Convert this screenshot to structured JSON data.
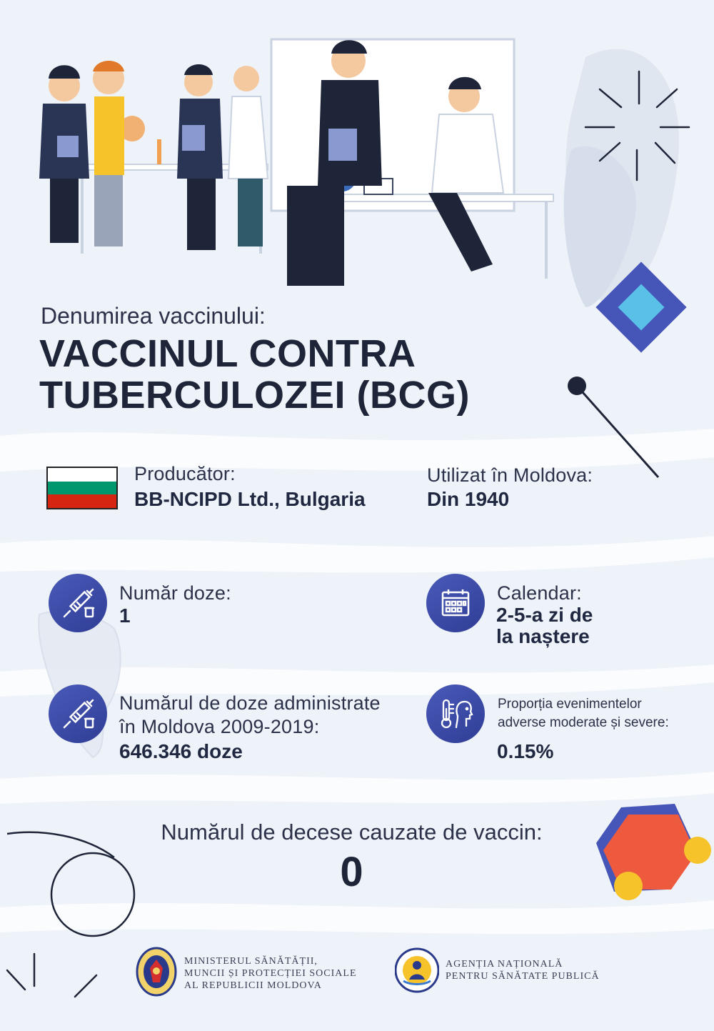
{
  "vaccine": {
    "label": "Denumirea vaccinului:",
    "name_line1": "VACCINUL CONTRA",
    "name_line2": "TUBERCULOZEI (BCG)"
  },
  "producer": {
    "label": "Producător:",
    "value": "BB-NCIPD Ltd., Bulgaria",
    "flag_colors": [
      "#ffffff",
      "#00966e",
      "#d62612"
    ]
  },
  "used_in_moldova": {
    "label": "Utilizat în Moldova:",
    "value": "Din 1940"
  },
  "doses": {
    "label": "Număr doze:",
    "value": "1",
    "icon": "syringe-icon"
  },
  "calendar": {
    "label": "Calendar:",
    "value_line1": "2-5-a zi de",
    "value_line2": "la naștere",
    "icon": "calendar-icon"
  },
  "administered": {
    "label_line1": "Numărul de doze administrate",
    "label_line2": "în Moldova 2009-2019:",
    "value": "646.346 doze",
    "icon": "syringe-icon"
  },
  "adverse_events": {
    "label_line1": "Proporția evenimentelor",
    "label_line2": "adverse moderate și severe:",
    "value": "0.15%",
    "icon": "thermometer-icon"
  },
  "deaths": {
    "label": "Numărul de decese cauzate de vaccin:",
    "value": "0"
  },
  "footer": {
    "ministry_line1": "MINISTERUL SĂNĂTĂȚII,",
    "ministry_line2": "MUNCII ȘI PROTECȚIEI SOCIALE",
    "ministry_line3": "AL REPUBLICII MOLDOVA",
    "agency_line1": "AGENȚIA NAȚIONALĂ",
    "agency_line2": "PENTRU SĂNĂTATE PUBLICĂ"
  },
  "colors": {
    "accent_blue": "#3a48a8",
    "dark_text": "#1f2840",
    "hexagon_red": "#e8454a",
    "hexagon_orange": "#f07a3a",
    "yellow": "#f6c42a"
  }
}
